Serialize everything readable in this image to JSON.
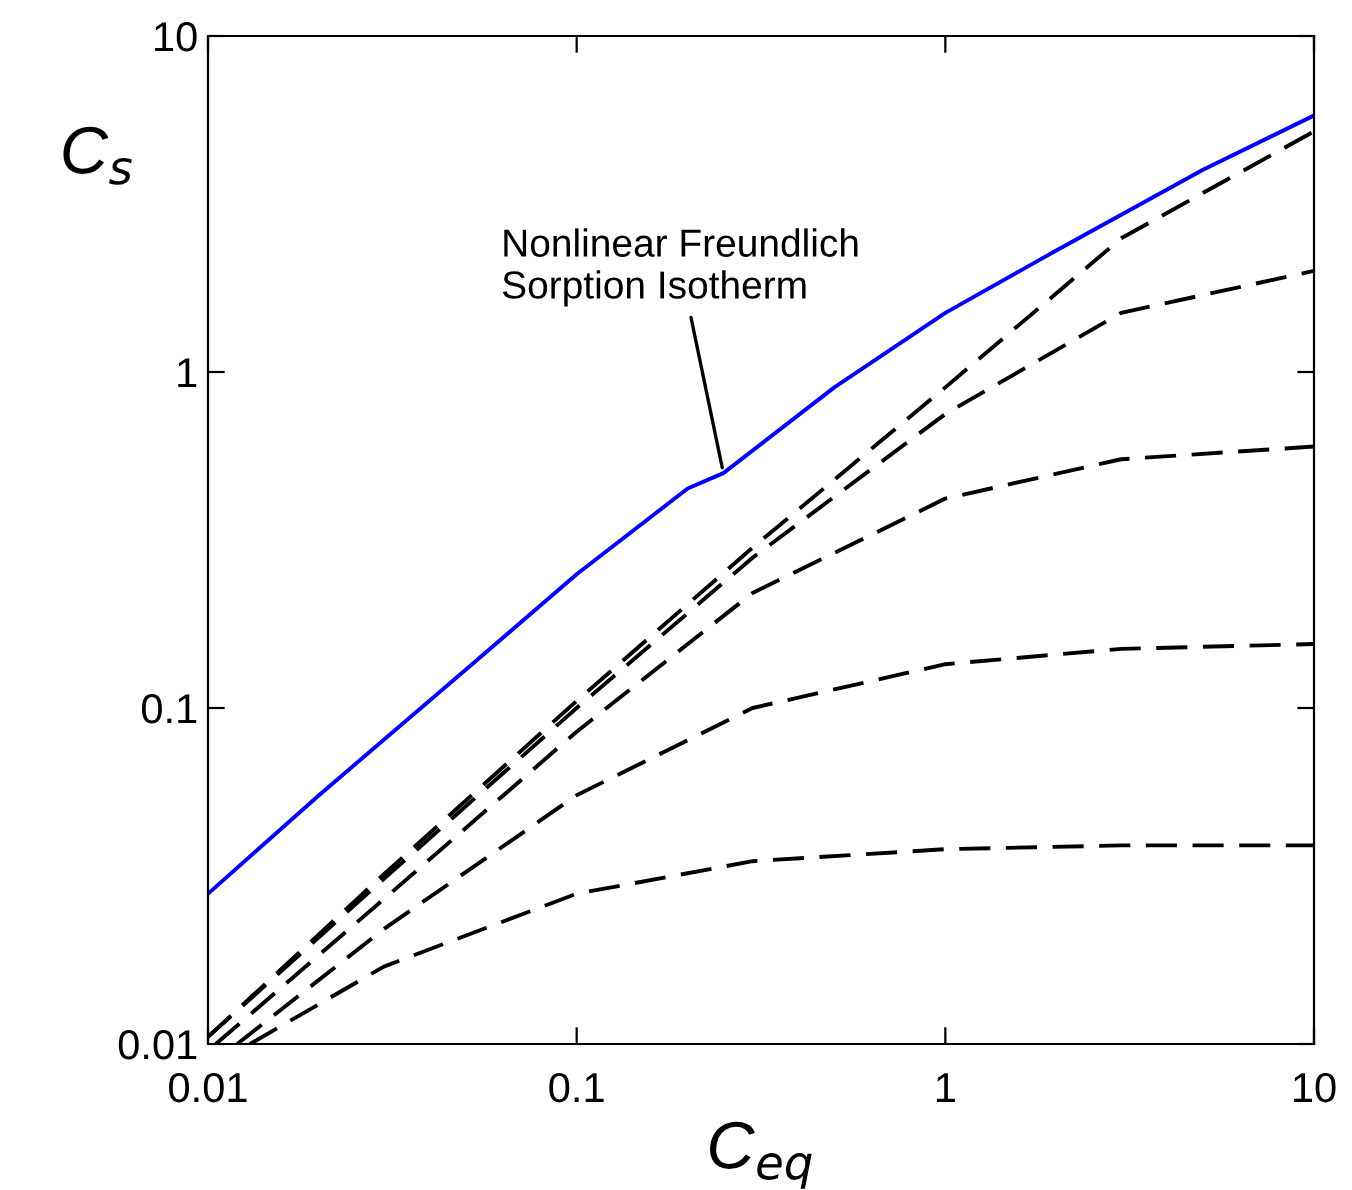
{
  "chart_data": {
    "type": "line",
    "xlabel": "C$_{eq}$",
    "ylabel": "C$_{s}$",
    "log": "xy",
    "xlim": [
      0.01,
      10
    ],
    "ylim": [
      0.01,
      10
    ],
    "xticks": [
      0.01,
      0.1,
      1,
      10
    ],
    "yticks": [
      0.01,
      0.1,
      1,
      10
    ],
    "grid": false,
    "legend": false,
    "annotations": [
      {
        "text": "Nonlinear Freundlich\nSorption Isotherm",
        "x": 0.25,
        "y": 0.5
      }
    ],
    "series": [
      {
        "color": "#0000ff",
        "line_style": "solid",
        "x": [
          0.01,
          0.02,
          0.05,
          0.1,
          0.2,
          0.25,
          0.5,
          1,
          2,
          5,
          10
        ],
        "values": [
          0.028,
          0.055,
          0.13,
          0.25,
          0.45,
          0.5,
          0.9,
          1.5,
          2.3,
          4.0,
          5.8
        ]
      },
      {
        "color": "#000000",
        "line_style": "dashed",
        "x": [
          0.01,
          0.03,
          0.1,
          0.3,
          1,
          3,
          10
        ],
        "values": [
          0.0105,
          0.032,
          0.105,
          0.3,
          0.9,
          2.5,
          5.2
        ]
      },
      {
        "color": "#000000",
        "line_style": "dashed",
        "x": [
          0.01,
          0.03,
          0.1,
          0.3,
          1,
          3,
          10
        ],
        "values": [
          0.0105,
          0.031,
          0.1,
          0.28,
          0.75,
          1.5,
          2.0
        ]
      },
      {
        "color": "#000000",
        "line_style": "dashed",
        "x": [
          0.0105,
          0.03,
          0.1,
          0.3,
          1,
          3,
          10
        ],
        "values": [
          0.01,
          0.027,
          0.085,
          0.22,
          0.42,
          0.55,
          0.6
        ]
      },
      {
        "color": "#000000",
        "line_style": "dashed",
        "x": [
          0.012,
          0.03,
          0.1,
          0.3,
          1,
          3,
          10
        ],
        "values": [
          0.01,
          0.022,
          0.055,
          0.1,
          0.135,
          0.15,
          0.155
        ]
      },
      {
        "color": "#000000",
        "line_style": "dashed",
        "x": [
          0.013,
          0.03,
          0.1,
          0.3,
          1,
          3,
          10
        ],
        "values": [
          0.01,
          0.017,
          0.028,
          0.035,
          0.038,
          0.039,
          0.039
        ]
      }
    ]
  }
}
